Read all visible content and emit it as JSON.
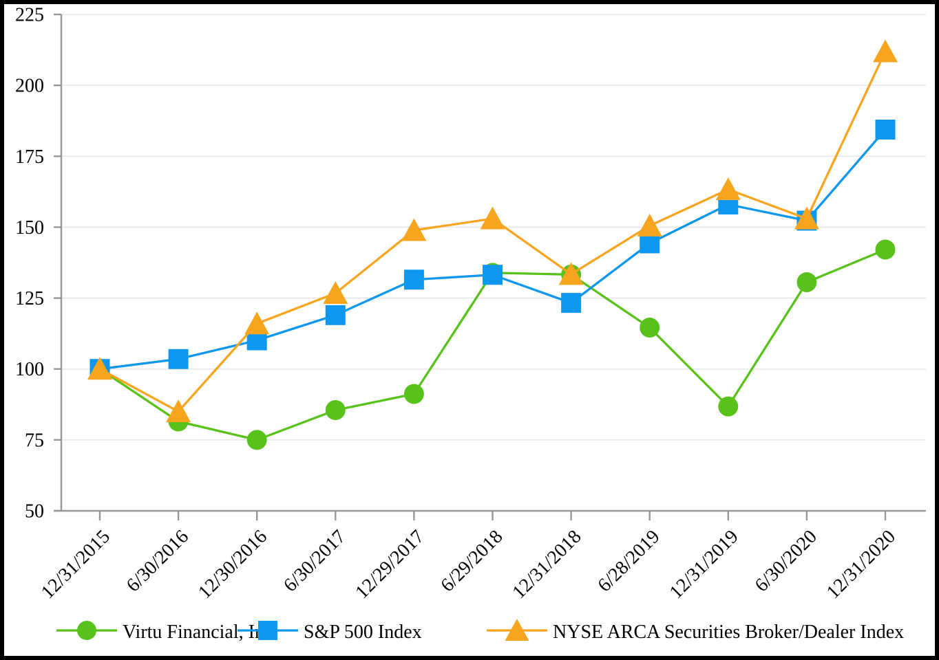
{
  "chart_data": {
    "type": "line",
    "title": "",
    "xlabel": "",
    "ylabel": "",
    "categories": [
      "12/31/2015",
      "6/30/2016",
      "12/30/2016",
      "6/30/2017",
      "12/29/2017",
      "6/29/2018",
      "12/31/2018",
      "6/28/2019",
      "12/31/2019",
      "6/30/2020",
      "12/31/2020"
    ],
    "series": [
      {
        "name": "Virtu Financial, Inc.",
        "marker": "circle",
        "color": "#58C21A",
        "values": [
          100,
          81.5,
          75,
          85.5,
          91.2,
          133.9,
          133.3,
          114.6,
          86.8,
          130.6,
          142.1
        ]
      },
      {
        "name": "S&P 500 Index",
        "marker": "square",
        "color": "#0E97EE",
        "values": [
          100,
          103.5,
          110.1,
          119.0,
          131.5,
          133.2,
          123.3,
          144.3,
          158.0,
          152.3,
          184.4
        ]
      },
      {
        "name": "NYSE ARCA Securities Broker/Dealer Index",
        "marker": "triangle",
        "color": "#F7A51E",
        "values": [
          100,
          85.0,
          116.0,
          126.7,
          148.9,
          153.0,
          133.4,
          150.5,
          163.3,
          153.0,
          211.9
        ]
      }
    ],
    "ylim": [
      50,
      225
    ],
    "ytick_step": 25,
    "y_tick_labels": [
      "50",
      "75",
      "100",
      "125",
      "150",
      "175",
      "200",
      "225"
    ],
    "grid": "horizontal",
    "legend_position": "bottom",
    "axis_color": "#979797",
    "grid_color": "#E9E9E9",
    "text_color": "#000000",
    "background": "#FFFFFF",
    "border_color": "#000000"
  }
}
